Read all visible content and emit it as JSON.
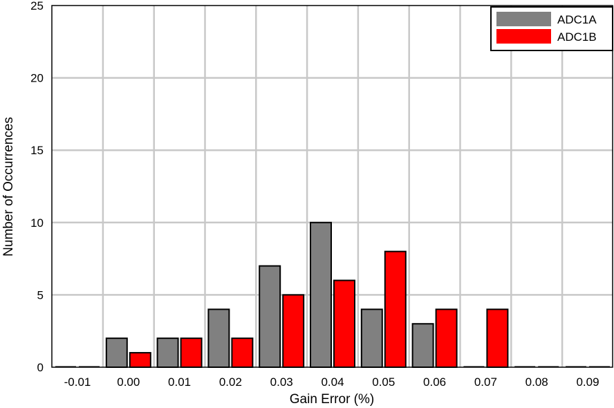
{
  "chart_data": {
    "type": "bar",
    "xlabel": "Gain Error (%)",
    "ylabel": "Number of Occurrences",
    "categories": [
      "-0.01",
      "0.00",
      "0.01",
      "0.02",
      "0.03",
      "0.04",
      "0.05",
      "0.06",
      "0.07",
      "0.08",
      "0.09"
    ],
    "yticks": [
      "0",
      "5",
      "10",
      "15",
      "20",
      "25"
    ],
    "ylim": [
      0,
      25
    ],
    "grid": true,
    "legend_position": "top-right",
    "series": [
      {
        "name": "ADC1A",
        "color": "#808080",
        "values": [
          0,
          2,
          2,
          4,
          7,
          10,
          4,
          3,
          0,
          0,
          0
        ]
      },
      {
        "name": "ADC1B",
        "color": "#ff0000",
        "values": [
          0,
          1,
          2,
          2,
          5,
          6,
          8,
          4,
          4,
          0,
          0
        ]
      }
    ]
  }
}
